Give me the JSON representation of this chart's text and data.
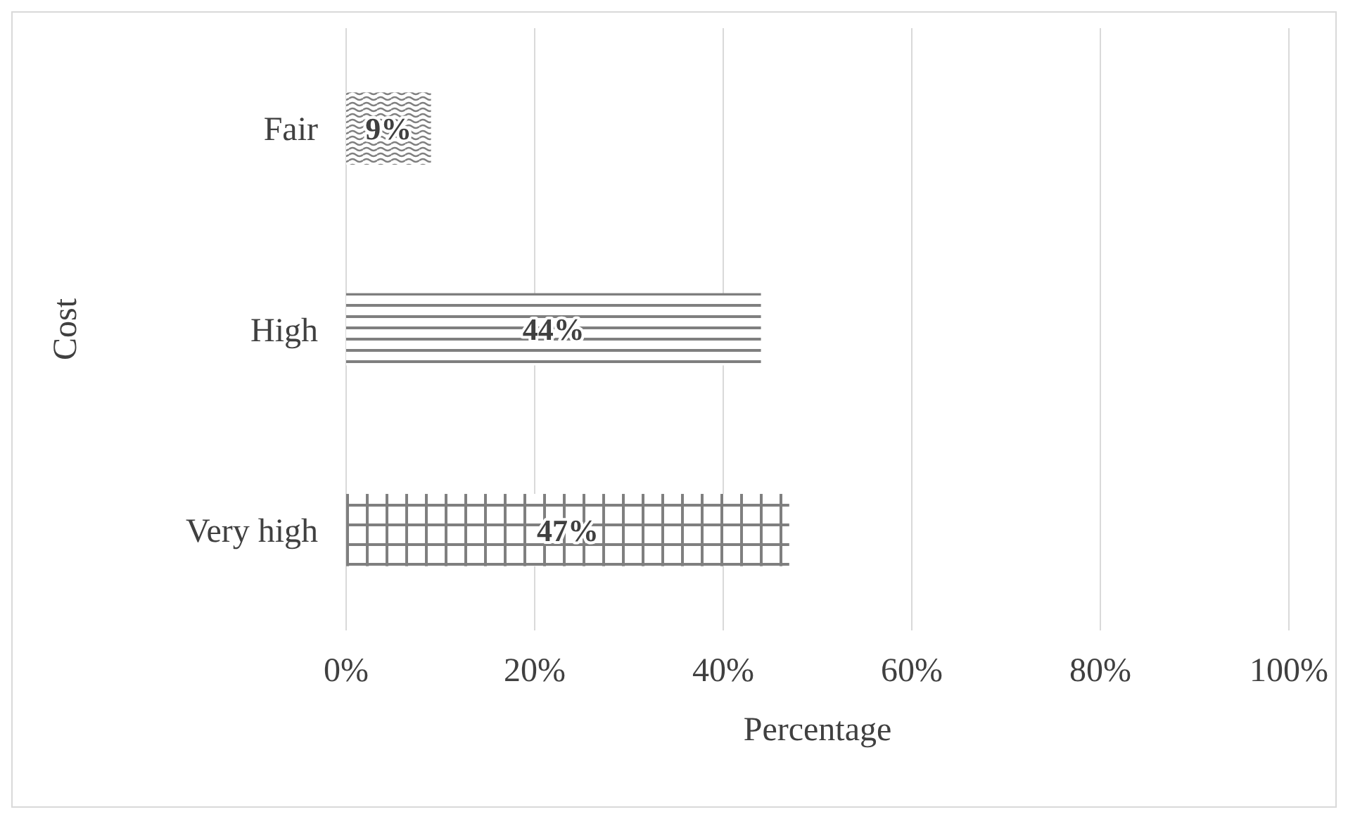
{
  "chart_data": {
    "type": "bar",
    "orientation": "horizontal",
    "xlabel": "Percentage",
    "ylabel": "Cost",
    "categories": [
      "Fair",
      "High",
      "Very high"
    ],
    "values": [
      9,
      44,
      47
    ],
    "colors": [
      "#7f7f7f",
      "#7f7f7f",
      "#7f7f7f"
    ],
    "value_labels": [
      "9%",
      "44%",
      "47%"
    ],
    "xlim": [
      0,
      100
    ],
    "xticks": [
      {
        "value": 0,
        "label": "0%"
      },
      {
        "value": 20,
        "label": "20%"
      },
      {
        "value": 40,
        "label": "40%"
      },
      {
        "value": 60,
        "label": "60%"
      },
      {
        "value": 80,
        "label": "80%"
      },
      {
        "value": 100,
        "label": "100%"
      }
    ],
    "grid": "x"
  }
}
